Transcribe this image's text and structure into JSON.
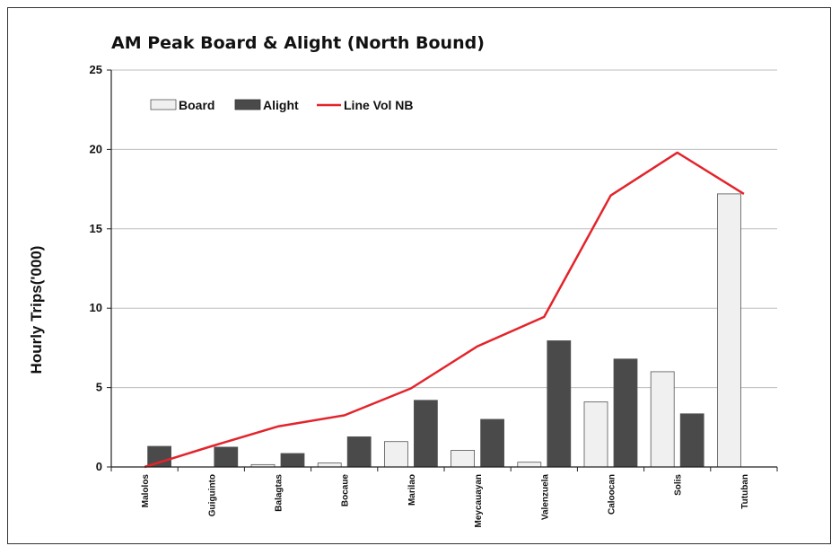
{
  "chart_data": {
    "type": "bar",
    "title": "AM Peak Board & Alight (North Bound)",
    "xlabel": "",
    "ylabel": "Hourly Trips('000)",
    "ylim": [
      0,
      25
    ],
    "yticks": [
      "0",
      "5",
      "10",
      "15",
      "20",
      "25"
    ],
    "grid": true,
    "legend_position": "top-left",
    "categories": [
      "Malolos",
      "Guiguinto",
      "Balagtas",
      "Bocaue",
      "Marilao",
      "Meycauayan",
      "Valenzuela",
      "Caloocan",
      "Solis",
      "Tutuban"
    ],
    "series": [
      {
        "name": "Board",
        "kind": "bar",
        "color": "#f0f0f0",
        "values": [
          0,
          0,
          0.15,
          0.25,
          1.6,
          1.05,
          0.3,
          4.1,
          6.0,
          17.2
        ]
      },
      {
        "name": "Alight",
        "kind": "bar",
        "color": "#4a4a4a",
        "values": [
          1.3,
          1.25,
          0.85,
          1.9,
          4.2,
          3.0,
          7.95,
          6.8,
          3.35,
          0
        ]
      },
      {
        "name": "Line Vol NB",
        "kind": "line",
        "color": "#e3242b",
        "values": [
          0,
          1.3,
          2.55,
          3.25,
          4.95,
          7.6,
          9.45,
          17.1,
          19.8,
          17.2
        ]
      }
    ]
  }
}
